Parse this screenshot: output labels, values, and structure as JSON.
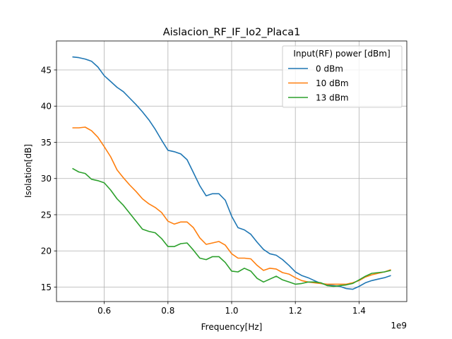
{
  "chart_data": {
    "type": "line",
    "title": "Aislacion_RF_IF_Io2_Placa1",
    "xlabel": "Frequency[Hz]",
    "ylabel": "Isolation[dB]",
    "x_offset_label": "1e9",
    "xlim": [
      0.45,
      1.55
    ],
    "ylim": [
      13,
      49
    ],
    "x_ticks": [
      0.6,
      0.8,
      1.0,
      1.2,
      1.4
    ],
    "x_tick_labels": [
      "0.6",
      "0.8",
      "1.0",
      "1.2",
      "1.4"
    ],
    "y_ticks": [
      15,
      20,
      25,
      30,
      35,
      40,
      45
    ],
    "y_tick_labels": [
      "15",
      "20",
      "25",
      "30",
      "35",
      "40",
      "45"
    ],
    "grid": true,
    "legend": {
      "title": "Input(RF) power [dBm]",
      "position": "top-right"
    },
    "series": [
      {
        "name": "0 dBm",
        "color": "#1f77b4",
        "x": [
          0.5,
          0.52,
          0.54,
          0.56,
          0.58,
          0.6,
          0.62,
          0.64,
          0.66,
          0.68,
          0.7,
          0.72,
          0.74,
          0.76,
          0.78,
          0.8,
          0.82,
          0.84,
          0.86,
          0.88,
          0.9,
          0.92,
          0.94,
          0.96,
          0.98,
          1.0,
          1.02,
          1.04,
          1.06,
          1.08,
          1.1,
          1.12,
          1.14,
          1.16,
          1.18,
          1.2,
          1.22,
          1.24,
          1.26,
          1.28,
          1.3,
          1.32,
          1.34,
          1.36,
          1.38,
          1.4,
          1.42,
          1.44,
          1.46,
          1.48,
          1.5
        ],
        "y": [
          46.8,
          46.7,
          46.5,
          46.2,
          45.4,
          44.2,
          43.4,
          42.6,
          42.0,
          41.1,
          40.2,
          39.2,
          38.1,
          36.8,
          35.3,
          33.9,
          33.7,
          33.4,
          32.6,
          30.8,
          29.0,
          27.6,
          27.9,
          27.9,
          27.0,
          24.8,
          23.2,
          22.9,
          22.3,
          21.2,
          20.2,
          19.6,
          19.4,
          18.8,
          18.0,
          17.1,
          16.6,
          16.3,
          15.9,
          15.5,
          15.3,
          15.2,
          15.1,
          14.8,
          14.7,
          15.1,
          15.6,
          15.9,
          16.1,
          16.3,
          16.6
        ]
      },
      {
        "name": "10 dBm",
        "color": "#ff7f0e",
        "x": [
          0.5,
          0.52,
          0.54,
          0.56,
          0.58,
          0.6,
          0.62,
          0.64,
          0.66,
          0.68,
          0.7,
          0.72,
          0.74,
          0.76,
          0.78,
          0.8,
          0.82,
          0.84,
          0.86,
          0.88,
          0.9,
          0.92,
          0.94,
          0.96,
          0.98,
          1.0,
          1.02,
          1.04,
          1.06,
          1.08,
          1.1,
          1.12,
          1.14,
          1.16,
          1.18,
          1.2,
          1.22,
          1.24,
          1.26,
          1.28,
          1.3,
          1.32,
          1.34,
          1.36,
          1.38,
          1.4,
          1.42,
          1.44,
          1.46,
          1.48,
          1.5
        ],
        "y": [
          37.0,
          37.0,
          37.1,
          36.6,
          35.7,
          34.4,
          33.0,
          31.2,
          30.1,
          29.1,
          28.2,
          27.2,
          26.5,
          26.0,
          25.3,
          24.1,
          23.7,
          24.0,
          24.0,
          23.2,
          21.8,
          20.9,
          21.1,
          21.3,
          20.8,
          19.6,
          19.0,
          19.0,
          18.9,
          18.0,
          17.3,
          17.6,
          17.5,
          17.0,
          16.8,
          16.3,
          15.9,
          15.7,
          15.6,
          15.5,
          15.4,
          15.4,
          15.4,
          15.4,
          15.6,
          15.9,
          16.4,
          16.7,
          16.9,
          17.1,
          17.4
        ]
      },
      {
        "name": "13 dBm",
        "color": "#2ca02c",
        "x": [
          0.5,
          0.52,
          0.54,
          0.56,
          0.58,
          0.6,
          0.62,
          0.64,
          0.66,
          0.68,
          0.7,
          0.72,
          0.74,
          0.76,
          0.78,
          0.8,
          0.82,
          0.84,
          0.86,
          0.88,
          0.9,
          0.92,
          0.94,
          0.96,
          0.98,
          1.0,
          1.02,
          1.04,
          1.06,
          1.08,
          1.1,
          1.12,
          1.14,
          1.16,
          1.18,
          1.2,
          1.22,
          1.24,
          1.26,
          1.28,
          1.3,
          1.32,
          1.34,
          1.36,
          1.38,
          1.4,
          1.42,
          1.44,
          1.46,
          1.48,
          1.5
        ],
        "y": [
          31.4,
          30.9,
          30.7,
          29.9,
          29.7,
          29.4,
          28.4,
          27.2,
          26.3,
          25.2,
          24.1,
          23.0,
          22.7,
          22.5,
          21.7,
          20.6,
          20.6,
          21.0,
          21.1,
          20.1,
          19.0,
          18.8,
          19.2,
          19.2,
          18.4,
          17.2,
          17.1,
          17.6,
          17.2,
          16.2,
          15.7,
          16.1,
          16.5,
          16.0,
          15.7,
          15.4,
          15.5,
          15.7,
          15.7,
          15.6,
          15.2,
          15.1,
          15.2,
          15.3,
          15.5,
          16.0,
          16.5,
          16.9,
          17.0,
          17.1,
          17.3
        ]
      }
    ]
  }
}
